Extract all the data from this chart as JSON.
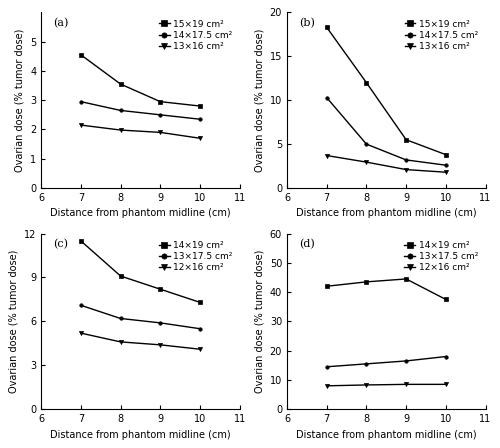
{
  "x": [
    7,
    8,
    9,
    10
  ],
  "subplots": [
    {
      "label": "(a)",
      "ylim": [
        0,
        6
      ],
      "yticks": [
        0,
        1,
        2,
        3,
        4,
        5
      ],
      "series": [
        {
          "label": "15×19 cm²",
          "marker": "s",
          "values": [
            4.55,
            3.55,
            2.95,
            2.8
          ]
        },
        {
          "label": "14×17.5 cm²",
          "marker": ".",
          "values": [
            2.95,
            2.65,
            2.5,
            2.35
          ]
        },
        {
          "label": "13×16 cm²",
          "marker": "v",
          "values": [
            2.15,
            1.98,
            1.9,
            1.7
          ]
        }
      ]
    },
    {
      "label": "(b)",
      "ylim": [
        0,
        20
      ],
      "yticks": [
        0,
        5,
        10,
        15,
        20
      ],
      "series": [
        {
          "label": "15×19 cm²",
          "marker": "s",
          "values": [
            18.3,
            12.0,
            5.5,
            3.8
          ]
        },
        {
          "label": "14×17.5 cm²",
          "marker": ".",
          "values": [
            10.3,
            5.0,
            3.2,
            2.6
          ]
        },
        {
          "label": "13×16 cm²",
          "marker": "v",
          "values": [
            3.7,
            2.95,
            2.1,
            1.8
          ]
        }
      ]
    },
    {
      "label": "(c)",
      "ylim": [
        0,
        12
      ],
      "yticks": [
        0,
        3,
        6,
        9,
        12
      ],
      "series": [
        {
          "label": "14×19 cm²",
          "marker": "s",
          "values": [
            11.5,
            9.1,
            8.2,
            7.3
          ]
        },
        {
          "label": "13×17.5 cm²",
          "marker": ".",
          "values": [
            7.1,
            6.2,
            5.9,
            5.5
          ]
        },
        {
          "label": "12×16 cm²",
          "marker": "v",
          "values": [
            5.2,
            4.6,
            4.4,
            4.1
          ]
        }
      ]
    },
    {
      "label": "(d)",
      "ylim": [
        0,
        60
      ],
      "yticks": [
        0,
        10,
        20,
        30,
        40,
        50,
        60
      ],
      "series": [
        {
          "label": "14×19 cm²",
          "marker": "s",
          "values": [
            42.0,
            43.5,
            44.5,
            37.5
          ]
        },
        {
          "label": "13×17.5 cm²",
          "marker": ".",
          "values": [
            14.5,
            15.5,
            16.5,
            18.0
          ]
        },
        {
          "label": "12×16 cm²",
          "marker": "v",
          "values": [
            8.0,
            8.3,
            8.5,
            8.5
          ]
        }
      ]
    }
  ],
  "xlabel": "Distance from phantom midline (cm)",
  "ylabel": "Ovarian dose (% tumor dose)",
  "xlim": [
    6,
    11
  ],
  "xticks": [
    6,
    7,
    8,
    9,
    10,
    11
  ],
  "line_color": "black",
  "marker_size_sq": 3,
  "marker_size_dot": 5,
  "marker_size_tri": 3,
  "line_width": 1.0,
  "label_fontsize": 7,
  "tick_fontsize": 7,
  "legend_fontsize": 6.5,
  "subplot_label_fontsize": 8
}
